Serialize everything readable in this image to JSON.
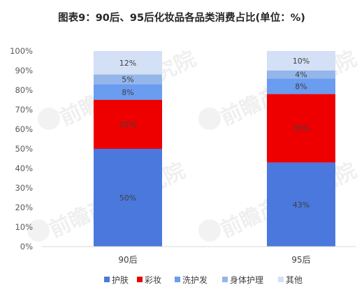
{
  "chart_data": {
    "type": "bar",
    "stacked": true,
    "title": "图表9：90后、95后化妆品各品类消费占比(单位：%)",
    "categories": [
      "90后",
      "95后"
    ],
    "series": [
      {
        "name": "护肤",
        "color": "#4a78dc",
        "values": [
          50,
          43
        ],
        "labels": [
          "50%",
          "43%"
        ]
      },
      {
        "name": "彩妆",
        "color": "#ee0000",
        "values": [
          25,
          35
        ],
        "labels": [
          "25%",
          "35%"
        ]
      },
      {
        "name": "洗护发",
        "color": "#6a9cf0",
        "values": [
          8,
          8
        ],
        "labels": [
          "8%",
          "8%"
        ]
      },
      {
        "name": "身体护理",
        "color": "#94b6ea",
        "values": [
          5,
          4
        ],
        "labels": [
          "5%",
          "4%"
        ]
      },
      {
        "name": "其他",
        "color": "#d3e0f5",
        "values": [
          12,
          10
        ],
        "labels": [
          "12%",
          "10%"
        ]
      }
    ],
    "yticks": [
      "0%",
      "10%",
      "20%",
      "30%",
      "40%",
      "50%",
      "60%",
      "70%",
      "80%",
      "90%",
      "100%"
    ],
    "ylim": [
      0,
      100
    ],
    "legend": "bottom",
    "grid": false
  },
  "watermark": "前瞻产业研究院"
}
